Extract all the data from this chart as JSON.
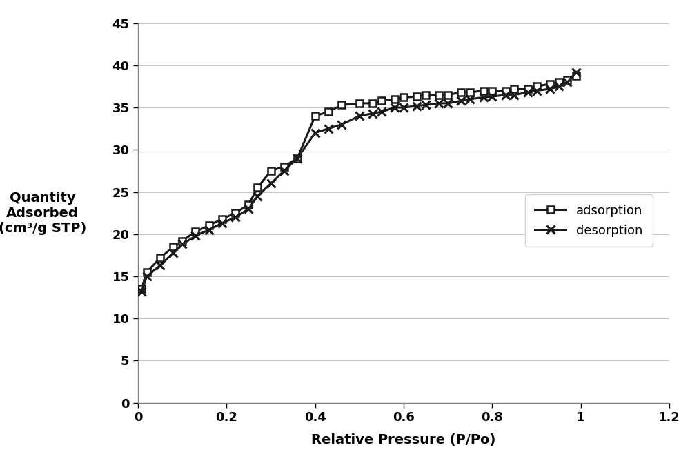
{
  "adsorption_x": [
    0.008,
    0.02,
    0.05,
    0.08,
    0.1,
    0.13,
    0.16,
    0.19,
    0.22,
    0.25,
    0.27,
    0.3,
    0.33,
    0.36,
    0.4,
    0.43,
    0.46,
    0.5,
    0.53,
    0.55,
    0.58,
    0.6,
    0.63,
    0.65,
    0.68,
    0.7,
    0.73,
    0.75,
    0.78,
    0.8,
    0.83,
    0.85,
    0.88,
    0.9,
    0.93,
    0.95,
    0.97,
    0.99
  ],
  "adsorption_y": [
    13.5,
    15.5,
    17.2,
    18.5,
    19.2,
    20.3,
    21.0,
    21.8,
    22.5,
    23.5,
    25.5,
    27.5,
    28.0,
    29.0,
    34.0,
    34.5,
    35.3,
    35.5,
    35.5,
    35.8,
    36.0,
    36.2,
    36.3,
    36.5,
    36.5,
    36.5,
    36.8,
    36.8,
    37.0,
    37.0,
    37.0,
    37.2,
    37.2,
    37.5,
    37.8,
    38.0,
    38.3,
    38.8
  ],
  "desorption_x": [
    0.008,
    0.02,
    0.05,
    0.08,
    0.1,
    0.13,
    0.16,
    0.19,
    0.22,
    0.25,
    0.27,
    0.3,
    0.33,
    0.36,
    0.4,
    0.43,
    0.46,
    0.5,
    0.53,
    0.55,
    0.58,
    0.6,
    0.63,
    0.65,
    0.68,
    0.7,
    0.73,
    0.75,
    0.78,
    0.8,
    0.83,
    0.85,
    0.88,
    0.9,
    0.93,
    0.95,
    0.97,
    0.99
  ],
  "desorption_y": [
    13.2,
    15.0,
    16.3,
    17.8,
    18.8,
    19.8,
    20.5,
    21.3,
    22.0,
    23.0,
    24.5,
    26.0,
    27.5,
    29.0,
    32.0,
    32.5,
    33.0,
    34.0,
    34.3,
    34.5,
    35.0,
    35.0,
    35.2,
    35.3,
    35.5,
    35.5,
    35.8,
    36.0,
    36.2,
    36.3,
    36.5,
    36.5,
    36.8,
    37.0,
    37.2,
    37.5,
    38.0,
    39.2
  ],
  "xlabel": "Relative Pressure (P/Po)",
  "ylabel_line1": "Quantity",
  "ylabel_line2": "Adsorbed",
  "ylabel_line3": "(cm³/g STP)",
  "xlim": [
    0,
    1.2
  ],
  "ylim": [
    0,
    45
  ],
  "xticks": [
    0,
    0.2,
    0.4,
    0.6,
    0.8,
    1.0,
    1.2
  ],
  "yticks": [
    0,
    5,
    10,
    15,
    20,
    25,
    30,
    35,
    40,
    45
  ],
  "line_color": "#1a1a1a",
  "background_color": "#ffffff",
  "grid_color": "#c8c8c8",
  "legend_labels": [
    "adsorption",
    "desorption"
  ]
}
